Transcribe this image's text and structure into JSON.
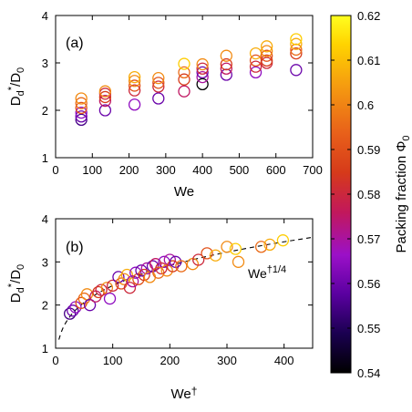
{
  "chart_data": [
    {
      "type": "scatter",
      "panel_label": "(a)",
      "xlabel": "We",
      "ylabel": "D_d*/D_0",
      "xlim": [
        0,
        700
      ],
      "ylim": [
        1,
        4
      ],
      "xticks": [
        "0",
        "100",
        "200",
        "300",
        "400",
        "500",
        "600",
        "700"
      ],
      "yticks": [
        "1",
        "2",
        "3",
        "4"
      ],
      "grid": false,
      "marker": "open circle",
      "points": [
        {
          "x": 70,
          "y": 1.8,
          "phi": 0.555
        },
        {
          "x": 70,
          "y": 1.87,
          "phi": 0.56
        },
        {
          "x": 70,
          "y": 1.95,
          "phi": 0.565
        },
        {
          "x": 70,
          "y": 2.05,
          "phi": 0.59
        },
        {
          "x": 70,
          "y": 2.15,
          "phi": 0.595
        },
        {
          "x": 70,
          "y": 2.25,
          "phi": 0.6
        },
        {
          "x": 135,
          "y": 2.0,
          "phi": 0.56
        },
        {
          "x": 135,
          "y": 2.2,
          "phi": 0.575
        },
        {
          "x": 135,
          "y": 2.28,
          "phi": 0.585
        },
        {
          "x": 135,
          "y": 2.35,
          "phi": 0.58
        },
        {
          "x": 135,
          "y": 2.4,
          "phi": 0.6
        },
        {
          "x": 215,
          "y": 2.12,
          "phi": 0.565
        },
        {
          "x": 215,
          "y": 2.42,
          "phi": 0.58
        },
        {
          "x": 215,
          "y": 2.52,
          "phi": 0.59
        },
        {
          "x": 215,
          "y": 2.62,
          "phi": 0.6
        },
        {
          "x": 215,
          "y": 2.7,
          "phi": 0.605
        },
        {
          "x": 280,
          "y": 2.25,
          "phi": 0.56
        },
        {
          "x": 280,
          "y": 2.5,
          "phi": 0.58
        },
        {
          "x": 280,
          "y": 2.58,
          "phi": 0.59
        },
        {
          "x": 280,
          "y": 2.68,
          "phi": 0.6
        },
        {
          "x": 350,
          "y": 2.4,
          "phi": 0.575
        },
        {
          "x": 350,
          "y": 2.65,
          "phi": 0.585
        },
        {
          "x": 350,
          "y": 2.8,
          "phi": 0.595
        },
        {
          "x": 350,
          "y": 2.98,
          "phi": 0.61
        },
        {
          "x": 400,
          "y": 2.55,
          "phi": 0.54
        },
        {
          "x": 400,
          "y": 2.7,
          "phi": 0.57
        },
        {
          "x": 400,
          "y": 2.8,
          "phi": 0.56
        },
        {
          "x": 400,
          "y": 2.88,
          "phi": 0.58
        },
        {
          "x": 400,
          "y": 2.97,
          "phi": 0.6
        },
        {
          "x": 465,
          "y": 2.75,
          "phi": 0.56
        },
        {
          "x": 465,
          "y": 2.88,
          "phi": 0.575
        },
        {
          "x": 465,
          "y": 2.97,
          "phi": 0.585
        },
        {
          "x": 465,
          "y": 3.15,
          "phi": 0.6
        },
        {
          "x": 545,
          "y": 2.8,
          "phi": 0.565
        },
        {
          "x": 545,
          "y": 2.92,
          "phi": 0.58
        },
        {
          "x": 545,
          "y": 3.05,
          "phi": 0.59
        },
        {
          "x": 545,
          "y": 3.2,
          "phi": 0.605
        },
        {
          "x": 575,
          "y": 3.0,
          "phi": 0.58
        },
        {
          "x": 575,
          "y": 3.05,
          "phi": 0.585
        },
        {
          "x": 575,
          "y": 3.15,
          "phi": 0.59
        },
        {
          "x": 575,
          "y": 3.25,
          "phi": 0.6
        },
        {
          "x": 575,
          "y": 3.35,
          "phi": 0.605
        },
        {
          "x": 655,
          "y": 2.85,
          "phi": 0.56
        },
        {
          "x": 655,
          "y": 3.2,
          "phi": 0.585
        },
        {
          "x": 655,
          "y": 3.28,
          "phi": 0.595
        },
        {
          "x": 655,
          "y": 3.4,
          "phi": 0.605
        },
        {
          "x": 655,
          "y": 3.5,
          "phi": 0.61
        }
      ]
    },
    {
      "type": "scatter",
      "panel_label": "(b)",
      "xlabel": "We†",
      "ylabel": "D_d*/D_0",
      "xlim": [
        0,
        450
      ],
      "ylim": [
        1,
        4
      ],
      "xticks": [
        "0",
        "100",
        "200",
        "300",
        "400"
      ],
      "yticks": [
        "1",
        "2",
        "3",
        "4"
      ],
      "grid": false,
      "marker": "open circle",
      "fit": {
        "label": "We†1/4",
        "form": "a*x^(1/4)",
        "a": 0.775
      },
      "points": [
        {
          "x": 25,
          "y": 1.8,
          "phi": 0.555
        },
        {
          "x": 30,
          "y": 1.87,
          "phi": 0.56
        },
        {
          "x": 35,
          "y": 1.95,
          "phi": 0.565
        },
        {
          "x": 45,
          "y": 2.05,
          "phi": 0.59
        },
        {
          "x": 50,
          "y": 2.15,
          "phi": 0.595
        },
        {
          "x": 55,
          "y": 2.25,
          "phi": 0.6
        },
        {
          "x": 60,
          "y": 2.0,
          "phi": 0.56
        },
        {
          "x": 70,
          "y": 2.2,
          "phi": 0.575
        },
        {
          "x": 75,
          "y": 2.3,
          "phi": 0.585
        },
        {
          "x": 80,
          "y": 2.35,
          "phi": 0.58
        },
        {
          "x": 90,
          "y": 2.4,
          "phi": 0.6
        },
        {
          "x": 95,
          "y": 2.15,
          "phi": 0.565
        },
        {
          "x": 100,
          "y": 2.45,
          "phi": 0.58
        },
        {
          "x": 110,
          "y": 2.65,
          "phi": 0.56
        },
        {
          "x": 115,
          "y": 2.5,
          "phi": 0.59
        },
        {
          "x": 120,
          "y": 2.6,
          "phi": 0.6
        },
        {
          "x": 125,
          "y": 2.7,
          "phi": 0.605
        },
        {
          "x": 130,
          "y": 2.4,
          "phi": 0.58
        },
        {
          "x": 135,
          "y": 2.55,
          "phi": 0.57
        },
        {
          "x": 140,
          "y": 2.75,
          "phi": 0.565
        },
        {
          "x": 145,
          "y": 2.6,
          "phi": 0.59
        },
        {
          "x": 150,
          "y": 2.8,
          "phi": 0.56
        },
        {
          "x": 155,
          "y": 2.7,
          "phi": 0.585
        },
        {
          "x": 160,
          "y": 2.85,
          "phi": 0.57
        },
        {
          "x": 165,
          "y": 2.65,
          "phi": 0.6
        },
        {
          "x": 170,
          "y": 2.9,
          "phi": 0.56
        },
        {
          "x": 175,
          "y": 2.95,
          "phi": 0.575
        },
        {
          "x": 180,
          "y": 2.75,
          "phi": 0.595
        },
        {
          "x": 185,
          "y": 2.85,
          "phi": 0.58
        },
        {
          "x": 190,
          "y": 3.0,
          "phi": 0.565
        },
        {
          "x": 195,
          "y": 2.8,
          "phi": 0.6
        },
        {
          "x": 200,
          "y": 3.05,
          "phi": 0.57
        },
        {
          "x": 205,
          "y": 2.9,
          "phi": 0.585
        },
        {
          "x": 210,
          "y": 3.0,
          "phi": 0.56
        },
        {
          "x": 220,
          "y": 2.9,
          "phi": 0.595
        },
        {
          "x": 240,
          "y": 2.95,
          "phi": 0.6
        },
        {
          "x": 250,
          "y": 3.05,
          "phi": 0.58
        },
        {
          "x": 265,
          "y": 3.2,
          "phi": 0.59
        },
        {
          "x": 280,
          "y": 3.15,
          "phi": 0.605
        },
        {
          "x": 300,
          "y": 3.35,
          "phi": 0.6
        },
        {
          "x": 315,
          "y": 3.3,
          "phi": 0.61
        },
        {
          "x": 320,
          "y": 3.0,
          "phi": 0.6
        },
        {
          "x": 360,
          "y": 3.35,
          "phi": 0.595
        },
        {
          "x": 375,
          "y": 3.4,
          "phi": 0.605
        },
        {
          "x": 398,
          "y": 3.5,
          "phi": 0.61
        }
      ]
    }
  ],
  "colorbar": {
    "label": "Packing fraction Φ0",
    "min": 0.54,
    "max": 0.62,
    "ticks": [
      "0.62",
      "0.61",
      "0.6",
      "0.59",
      "0.58",
      "0.57",
      "0.56",
      "0.55",
      "0.54"
    ],
    "palette": [
      "#000000",
      "#1a0050",
      "#5a00a0",
      "#9b10c8",
      "#c2185b",
      "#d63a1a",
      "#e8601a",
      "#f59a10",
      "#ffd400",
      "#ffff20"
    ]
  }
}
